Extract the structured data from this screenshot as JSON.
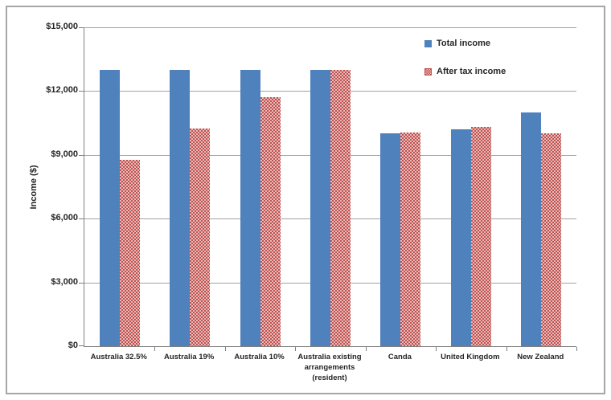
{
  "chart_data": {
    "type": "bar",
    "title": "",
    "xlabel": "",
    "ylabel": "Income ($)",
    "ylim": [
      0,
      15000
    ],
    "grid": true,
    "legend_position": "top-right",
    "yticks": [
      {
        "value": 15000,
        "label": "$15,000"
      },
      {
        "value": 12000,
        "label": "$12,000"
      },
      {
        "value": 9000,
        "label": "$9,000"
      },
      {
        "value": 6000,
        "label": "$6,000"
      },
      {
        "value": 3000,
        "label": "$3,000"
      },
      {
        "value": 0,
        "label": "$0"
      }
    ],
    "categories": [
      "Australia 32.5%",
      "Australia 19%",
      "Australia 10%",
      "Australia existing arrangements (resident)",
      "Canda",
      "United Kingdom",
      "New Zealand"
    ],
    "series": [
      {
        "name": "Total income",
        "color": "#4f81bd",
        "fill": "solid",
        "values": [
          13000,
          13000,
          13000,
          13000,
          10000,
          10200,
          11000
        ]
      },
      {
        "name": "After tax income",
        "color": "#c0504d",
        "fill": "dotted-checker",
        "values": [
          8775,
          10230,
          11700,
          13000,
          10050,
          10300,
          10000
        ]
      }
    ]
  },
  "colors": {
    "total_income": "#4f81bd",
    "after_tax_income": "#c0504d",
    "gridline": "#a3a3a3",
    "axis": "#808080",
    "frame_border": "#a6a6a6",
    "text": "#262626",
    "background": "#ffffff"
  }
}
